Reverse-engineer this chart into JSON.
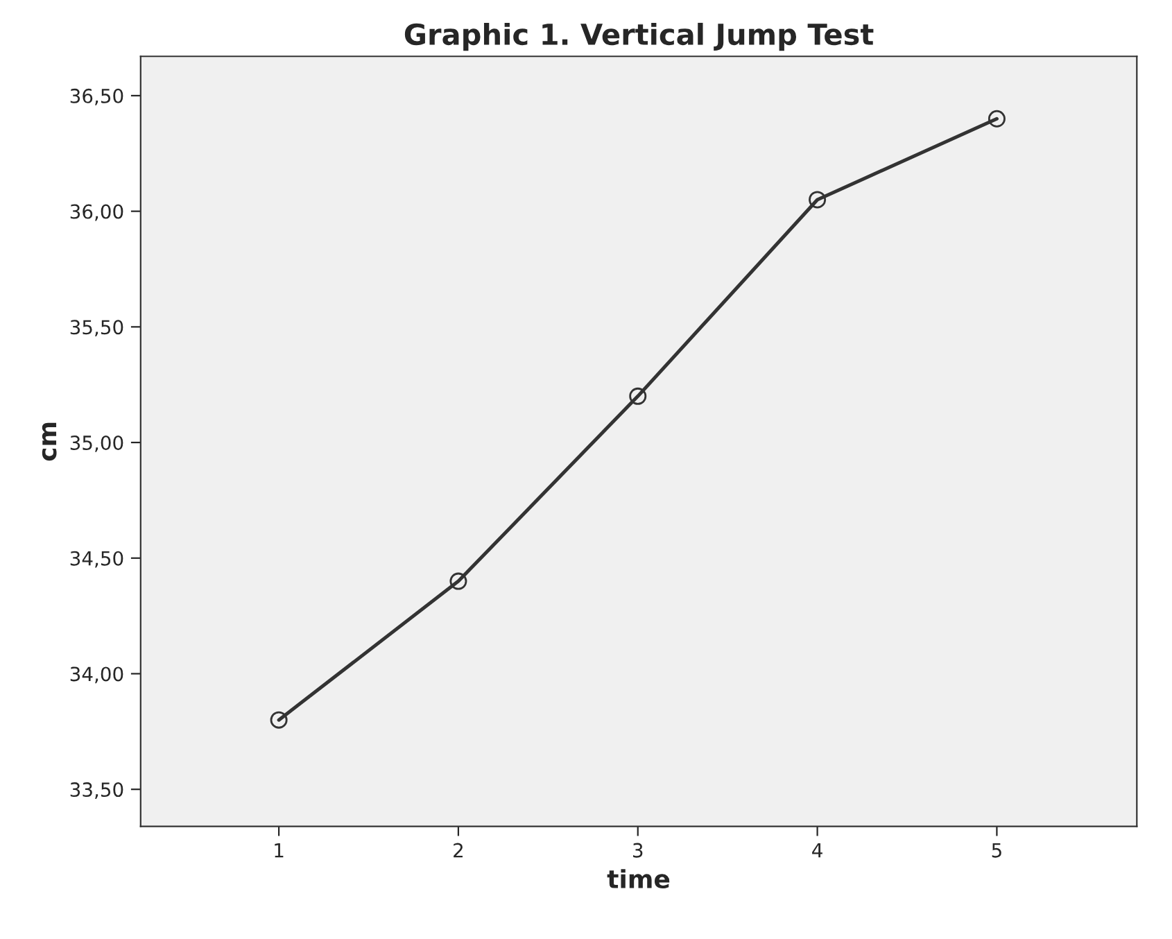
{
  "chart_data": {
    "type": "line",
    "title": "Graphic 1. Vertical Jump Test",
    "xlabel": "time",
    "ylabel": "cm",
    "x": [
      1,
      2,
      3,
      4,
      5
    ],
    "series": [
      {
        "color": "#333333",
        "values": [
          33.8,
          34.4,
          35.2,
          36.05,
          36.4
        ]
      }
    ],
    "xlim": [
      0.23,
      5.78
    ],
    "xticks": [
      1,
      2,
      3,
      4,
      5
    ],
    "ylim": [
      33.34,
      36.67
    ],
    "yticks": [
      {
        "value": 33.5,
        "label": "33,50"
      },
      {
        "value": 34.0,
        "label": "34,00"
      },
      {
        "value": 34.5,
        "label": "34,50"
      },
      {
        "value": 35.0,
        "label": "35,00"
      },
      {
        "value": 35.5,
        "label": "35,50"
      },
      {
        "value": 36.0,
        "label": "36,00"
      },
      {
        "value": 36.5,
        "label": "36,50"
      }
    ],
    "marker": "circle",
    "line_style": "solid",
    "grid": false,
    "legend": false
  }
}
